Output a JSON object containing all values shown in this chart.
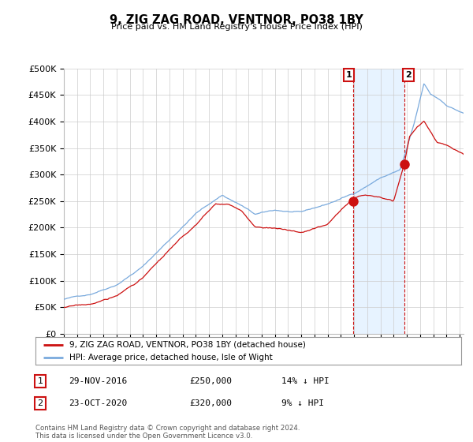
{
  "title": "9, ZIG ZAG ROAD, VENTNOR, PO38 1BY",
  "subtitle": "Price paid vs. HM Land Registry's House Price Index (HPI)",
  "ylim": [
    0,
    500000
  ],
  "yticks": [
    0,
    50000,
    100000,
    150000,
    200000,
    250000,
    300000,
    350000,
    400000,
    450000,
    500000
  ],
  "ytick_labels": [
    "£0",
    "£50K",
    "£100K",
    "£150K",
    "£200K",
    "£250K",
    "£300K",
    "£350K",
    "£400K",
    "£450K",
    "£500K"
  ],
  "xlim_start": 1995.0,
  "xlim_end": 2025.3,
  "hpi_color": "#7aaadd",
  "price_color": "#cc1111",
  "sale1_date": 2016.92,
  "sale1_price": 250000,
  "sale2_date": 2020.81,
  "sale2_price": 320000,
  "shade_color": "#ddeeff",
  "legend_line1": "9, ZIG ZAG ROAD, VENTNOR, PO38 1BY (detached house)",
  "legend_line2": "HPI: Average price, detached house, Isle of Wight",
  "table_row1": [
    "1",
    "29-NOV-2016",
    "£250,000",
    "14% ↓ HPI"
  ],
  "table_row2": [
    "2",
    "23-OCT-2020",
    "£320,000",
    "9% ↓ HPI"
  ],
  "footnote": "Contains HM Land Registry data © Crown copyright and database right 2024.\nThis data is licensed under the Open Government Licence v3.0.",
  "background_color": "#ffffff",
  "grid_color": "#cccccc"
}
